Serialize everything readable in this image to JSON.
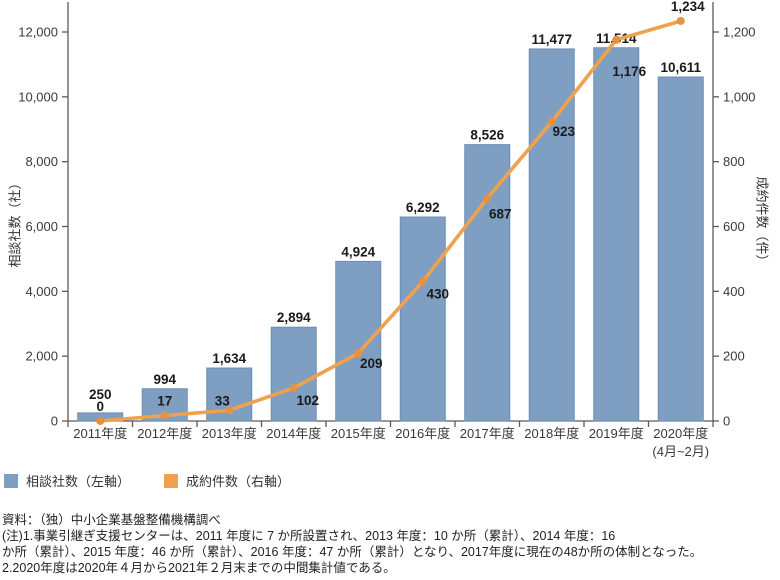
{
  "chart_data": {
    "type": "bar+line",
    "categories": [
      "2011年度",
      "2012年度",
      "2013年度",
      "2014年度",
      "2015年度",
      "2016年度",
      "2017年度",
      "2018年度",
      "2019年度",
      "2020年度"
    ],
    "last_category_note": "(4月~2月)",
    "series": [
      {
        "name": "相談社数（左軸）",
        "type": "bar",
        "axis": "left",
        "color": "#7E9EC2",
        "border_color": "#6C8DB2",
        "values": [
          250,
          994,
          1634,
          2894,
          4924,
          6292,
          8526,
          11477,
          11514,
          10611
        ]
      },
      {
        "name": "成約件数（右軸）",
        "type": "line",
        "axis": "right",
        "color": "#EFA14E",
        "marker_color": "#E59140",
        "values": [
          0,
          17,
          33,
          102,
          209,
          430,
          687,
          923,
          1176,
          1234
        ]
      }
    ],
    "left_axis": {
      "title": "相談社数（社）",
      "min": 0,
      "max": 12000,
      "step": 2000
    },
    "right_axis": {
      "title": "成約件数（件）",
      "min": 0,
      "max": 1200,
      "step": 200
    },
    "grid": false,
    "legend_position": "bottom-left",
    "data_label_color": "#1a1a1a",
    "axis_line_color": "#5a5a5a",
    "tick_label_color": "#3a3a3a"
  },
  "footer": {
    "source": "資料：（独）中小企業基盤整備機構調べ",
    "notes": [
      "(注)1.事業引継ぎ支援センターは、2011 年度に 7 か所設置され、2013 年度：10 か所（累計）、2014 年度：16",
      "か所（累計）、2015 年度：46 か所（累計）、2016 年度：47 か所（累計）となり、2017年度に現在の48か所の体制となった。",
      "2.2020年度は2020年４月から2021年２月末までの中間集計値である。"
    ]
  }
}
